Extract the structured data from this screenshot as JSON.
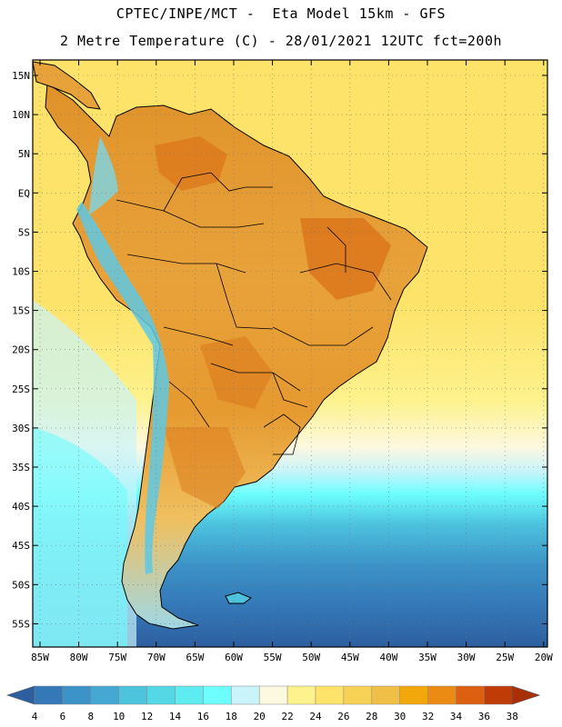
{
  "header": {
    "line1": "CPTEC/INPE/MCT -  Eta Model 15km - GFS",
    "line2": "2 Metre Temperature (C) - 28/01/2021 12UTC fct=200h"
  },
  "map": {
    "lat_labels": [
      "15N",
      "10N",
      "5N",
      "EQ",
      "5S",
      "10S",
      "15S",
      "20S",
      "25S",
      "30S",
      "35S",
      "40S",
      "45S",
      "50S",
      "55S"
    ],
    "lon_labels": [
      "85W",
      "80W",
      "75W",
      "70W",
      "65W",
      "60W",
      "55W",
      "50W",
      "45W",
      "40W",
      "35W",
      "30W",
      "25W",
      "20W"
    ]
  },
  "legend": {
    "values": [
      "4",
      "6",
      "8",
      "10",
      "12",
      "14",
      "16",
      "18",
      "20",
      "22",
      "24",
      "26",
      "28",
      "30",
      "32",
      "34",
      "36",
      "38"
    ],
    "colors": [
      "#2d5fa0",
      "#3478b8",
      "#3c93c8",
      "#45a8d2",
      "#4dc3de",
      "#55d8e6",
      "#5eecf0",
      "#6dfefe",
      "#c8f4fa",
      "#fdf8e0",
      "#fdf28c",
      "#fde36a",
      "#f8d255",
      "#f0bf46",
      "#f2a80a",
      "#ec8b14",
      "#dc6010",
      "#c03c06",
      "#a83008"
    ],
    "color_names": [
      "below 4",
      "4-6",
      "6-8",
      "8-10",
      "10-12",
      "12-14",
      "14-16",
      "16-18",
      "18-20",
      "20-22",
      "22-24",
      "24-26",
      "26-28",
      "28-30",
      "30-32",
      "32-34",
      "34-36",
      "36-38",
      "above 38"
    ]
  }
}
